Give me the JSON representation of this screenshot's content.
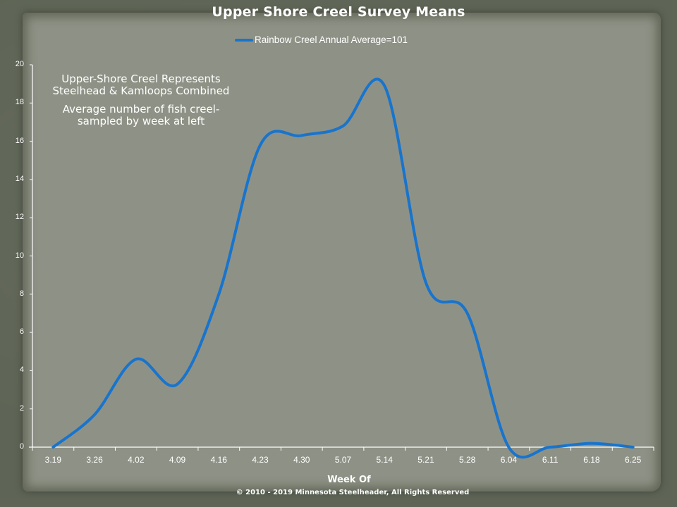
{
  "title": "Upper Shore Creel Survey Means",
  "legend": {
    "label": "Rainbow Creel Annual Average=101",
    "color": "#1874cd"
  },
  "annotation": {
    "line1": "Upper-Shore  Creel Represents Steelhead & Kamloops Combined",
    "line2": "Average  number of fish creel-sampled by week at left"
  },
  "axes": {
    "xlabel": "Week Of",
    "yticks": [
      "0",
      "2",
      "4",
      "6",
      "8",
      "10",
      "12",
      "14",
      "16",
      "18",
      "20"
    ],
    "xticks": [
      "3.19",
      "3.26",
      "4.02",
      "4.09",
      "4.16",
      "4.23",
      "4.30",
      "5.07",
      "5.14",
      "5.21",
      "5.28",
      "6.04",
      "6.11",
      "6.18",
      "6.25"
    ]
  },
  "footer": {
    "copyright": "© 2010 - 2019  Minnesota  Steelheader,  All Rights Reserved"
  },
  "colors": {
    "line": "#1874cd",
    "axis": "#ffffff",
    "paper": "#8f9388",
    "frame": "#5f6556"
  },
  "chart_data": {
    "type": "line",
    "title": "Upper Shore Creel Survey Means",
    "xlabel": "Week Of",
    "ylabel": "",
    "categories": [
      "3.19",
      "3.26",
      "4.02",
      "4.09",
      "4.16",
      "4.23",
      "4.30",
      "5.07",
      "5.14",
      "5.21",
      "5.28",
      "6.04",
      "6.11",
      "6.18",
      "6.25"
    ],
    "series": [
      {
        "name": "Rainbow Creel Annual Average=101",
        "values": [
          0,
          1.7,
          4.6,
          3.3,
          8.0,
          15.8,
          16.3,
          16.8,
          18.9,
          8.6,
          7.0,
          0,
          0,
          0.2,
          0
        ]
      }
    ],
    "ylim": [
      0,
      20
    ],
    "yticks_step": 2,
    "grid": false,
    "smoothed": true,
    "legend_position": "top",
    "annotations": [
      "Upper-Shore Creel Represents Steelhead & Kamloops Combined",
      "Average number of fish creel-sampled by week at left"
    ]
  }
}
